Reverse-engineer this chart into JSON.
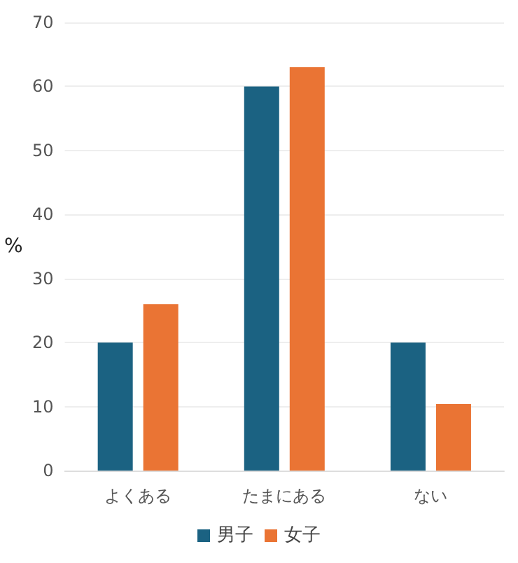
{
  "chart_data": {
    "type": "bar",
    "ylabel": "%",
    "categories": [
      "よくある",
      "たまにある",
      "ない"
    ],
    "series": [
      {
        "name": "男子",
        "color": "#1b6282",
        "values": [
          20,
          60,
          20
        ]
      },
      {
        "name": "女子",
        "color": "#ea7434",
        "values": [
          26,
          63,
          10.4
        ]
      }
    ],
    "ylim": [
      0,
      70
    ],
    "yticks": [
      0,
      10,
      20,
      30,
      40,
      50,
      60,
      70
    ],
    "grid": "y",
    "legend": "bottom"
  }
}
